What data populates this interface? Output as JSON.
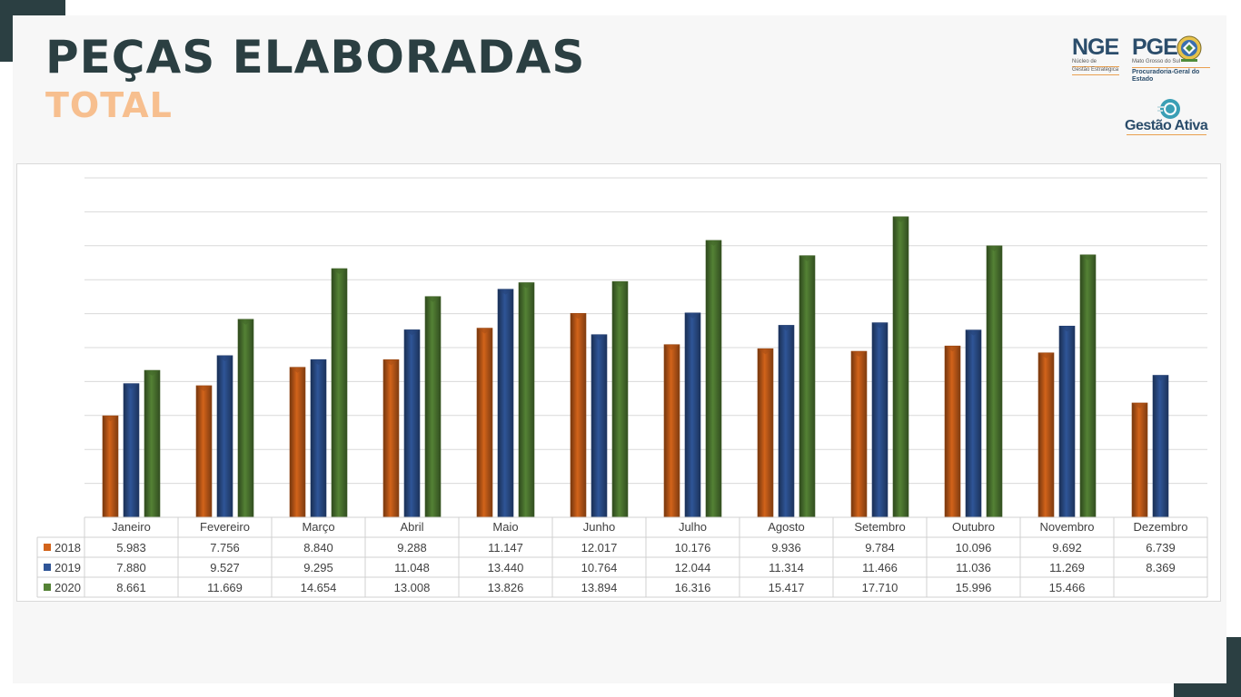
{
  "header": {
    "title": "PEÇAS ELABORADAS",
    "subtitle": "TOTAL"
  },
  "logos": {
    "nge": {
      "name": "NGE",
      "line1": "Núcleo de",
      "line2": "Gestão Estratégica"
    },
    "pge": {
      "name": "PGE",
      "line1": "Mato Grosso do Sul",
      "line2": "Procuradoria-Geral do Estado"
    },
    "gestao_ativa": "Gestão Ativa"
  },
  "colors": {
    "2018": "#d2631a",
    "2019": "#2f5597",
    "2020": "#548235",
    "title": "#2b3f42",
    "subtitle": "#f7bf8f"
  },
  "chart_data": {
    "type": "bar",
    "categories": [
      "Janeiro",
      "Fevereiro",
      "Março",
      "Abril",
      "Maio",
      "Junho",
      "Julho",
      "Agosto",
      "Setembro",
      "Outubro",
      "Novembro",
      "Dezembro"
    ],
    "series": [
      {
        "name": "2018",
        "values": [
          5983,
          7756,
          8840,
          9288,
          11147,
          12017,
          10176,
          9936,
          9784,
          10096,
          9692,
          6739
        ],
        "labels": [
          "5.983",
          "7.756",
          "8.840",
          "9.288",
          "11.147",
          "12.017",
          "10.176",
          "9.936",
          "9.784",
          "10.096",
          "9.692",
          "6.739"
        ]
      },
      {
        "name": "2019",
        "values": [
          7880,
          9527,
          9295,
          11048,
          13440,
          10764,
          12044,
          11314,
          11466,
          11036,
          11269,
          8369
        ],
        "labels": [
          "7.880",
          "9.527",
          "9.295",
          "11.048",
          "13.440",
          "10.764",
          "12.044",
          "11.314",
          "11.466",
          "11.036",
          "11.269",
          "8.369"
        ]
      },
      {
        "name": "2020",
        "values": [
          8661,
          11669,
          14654,
          13008,
          13826,
          13894,
          16316,
          15417,
          17710,
          15996,
          15466,
          null
        ],
        "labels": [
          "8.661",
          "11.669",
          "14.654",
          "13.008",
          "13.826",
          "13.894",
          "16.316",
          "15.417",
          "17.710",
          "15.996",
          "15.466",
          ""
        ]
      }
    ],
    "ylim": [
      0,
      20000
    ],
    "grid": true,
    "legend": "data-table-left"
  }
}
